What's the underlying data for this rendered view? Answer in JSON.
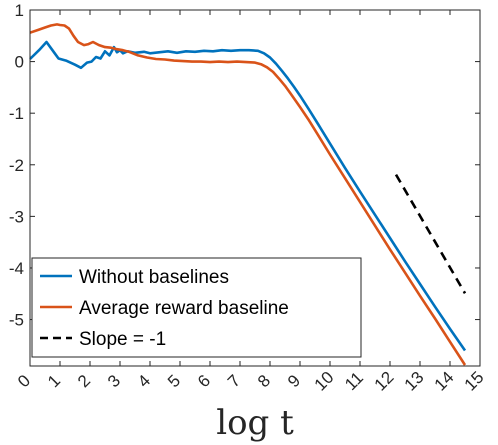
{
  "chart_data": {
    "type": "line",
    "title": "",
    "xlabel": "log t",
    "ylabel": "",
    "xlim": [
      0,
      15
    ],
    "ylim": [
      -5.9,
      1
    ],
    "xticks": [
      0,
      1,
      2,
      3,
      4,
      5,
      6,
      7,
      8,
      9,
      10,
      11,
      12,
      13,
      14,
      15
    ],
    "yticks": [
      1,
      0,
      -1,
      -2,
      -3,
      -4,
      -5
    ],
    "grid": false,
    "legend_position": "bottom-left",
    "series": [
      {
        "name": "Without baselines",
        "color": "#0072BD",
        "style": "solid",
        "x": [
          0,
          0.3,
          0.55,
          0.8,
          0.95,
          1.2,
          1.5,
          1.7,
          1.9,
          2.05,
          2.2,
          2.35,
          2.5,
          2.65,
          2.8,
          2.9,
          3.0,
          3.1,
          3.25,
          3.5,
          3.8,
          4.0,
          4.3,
          4.6,
          4.9,
          5.2,
          5.5,
          5.8,
          6.1,
          6.4,
          6.7,
          7.0,
          7.3,
          7.6,
          7.8,
          8.0,
          8.2,
          8.4,
          8.6,
          8.8,
          9.0,
          9.3,
          9.6,
          10.0,
          10.5,
          11.0,
          11.5,
          12.0,
          12.5,
          13.0,
          13.5,
          14.0,
          14.5
        ],
        "y": [
          0.05,
          0.22,
          0.38,
          0.18,
          0.06,
          0.02,
          -0.06,
          -0.12,
          -0.02,
          0.0,
          0.09,
          0.06,
          0.2,
          0.12,
          0.28,
          0.18,
          0.22,
          0.16,
          0.2,
          0.17,
          0.19,
          0.16,
          0.18,
          0.2,
          0.17,
          0.2,
          0.19,
          0.21,
          0.2,
          0.22,
          0.21,
          0.22,
          0.22,
          0.21,
          0.16,
          0.08,
          -0.04,
          -0.18,
          -0.33,
          -0.49,
          -0.66,
          -0.93,
          -1.21,
          -1.59,
          -2.06,
          -2.52,
          -2.97,
          -3.42,
          -3.87,
          -4.31,
          -4.75,
          -5.18,
          -5.6
        ]
      },
      {
        "name": "Average reward baseline",
        "color": "#D95319",
        "style": "solid",
        "x": [
          0,
          0.3,
          0.5,
          0.7,
          0.9,
          1.0,
          1.15,
          1.3,
          1.45,
          1.6,
          1.8,
          1.95,
          2.1,
          2.3,
          2.5,
          2.7,
          2.9,
          3.1,
          3.3,
          3.6,
          3.9,
          4.2,
          4.5,
          4.8,
          5.1,
          5.4,
          5.7,
          6.0,
          6.3,
          6.6,
          6.9,
          7.2,
          7.5,
          7.7,
          7.9,
          8.1,
          8.3,
          8.5,
          8.7,
          9.0,
          9.3,
          9.6,
          10.0,
          10.5,
          11.0,
          11.5,
          12.0,
          12.5,
          13.0,
          13.5,
          14.0,
          14.5
        ],
        "y": [
          0.56,
          0.62,
          0.66,
          0.7,
          0.72,
          0.71,
          0.7,
          0.64,
          0.5,
          0.38,
          0.32,
          0.34,
          0.38,
          0.32,
          0.28,
          0.27,
          0.24,
          0.22,
          0.19,
          0.12,
          0.08,
          0.05,
          0.04,
          0.02,
          0.01,
          0.0,
          0.0,
          -0.01,
          0.0,
          -0.01,
          0.0,
          -0.01,
          -0.02,
          -0.05,
          -0.11,
          -0.2,
          -0.33,
          -0.47,
          -0.63,
          -0.88,
          -1.14,
          -1.42,
          -1.8,
          -2.26,
          -2.72,
          -3.18,
          -3.64,
          -4.09,
          -4.54,
          -4.98,
          -5.43,
          -5.88
        ]
      },
      {
        "name": "Slope = -1",
        "color": "#000000",
        "style": "dashed",
        "x": [
          12.2,
          14.5
        ],
        "y": [
          -2.19,
          -4.49
        ]
      }
    ]
  }
}
